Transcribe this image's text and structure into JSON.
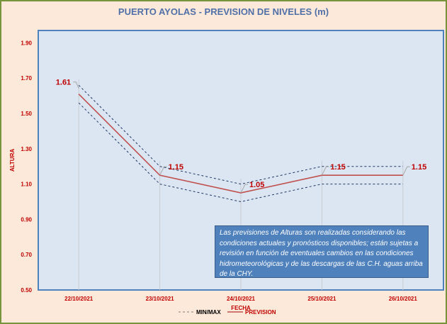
{
  "chart_data": {
    "type": "line",
    "title": "PUERTO AYOLAS - PREVISION DE NIVELES (m)",
    "xlabel": "FECHA",
    "ylabel": "ALTURA",
    "categories": [
      "22/10/2021",
      "23/10/2021",
      "24/10/2021",
      "25/10/2021",
      "26/10/2021"
    ],
    "yticks": [
      "0.50",
      "0.70",
      "0.90",
      "1.10",
      "1.30",
      "1.50",
      "1.70",
      "1.90"
    ],
    "ylim": [
      0.5,
      1.97
    ],
    "series": [
      {
        "name": "PREVISION",
        "values": [
          1.61,
          1.15,
          1.05,
          1.15,
          1.15
        ],
        "labels": [
          "1.61",
          "1.15",
          "1.05",
          "1.15",
          "1.15"
        ],
        "color": "#c0504d"
      },
      {
        "name": "MIN/MAX",
        "max": [
          1.66,
          1.2,
          1.1,
          1.2,
          1.2
        ],
        "min": [
          1.56,
          1.1,
          1.0,
          1.1,
          1.1
        ],
        "color": "#1f3864"
      }
    ],
    "legend": [
      "MIN/MAX",
      "PREVISION"
    ],
    "legend_position": "bottom",
    "annotation": "Las previsiones de Alturas son realizadas considerando las condiciones actuales y pronósticos disponibles;  están sujetas a revisión en función de eventuales cambios en las condiciones hidrometeorológicas y de las descargas de las C.H. aguas arriba de la CHY."
  }
}
